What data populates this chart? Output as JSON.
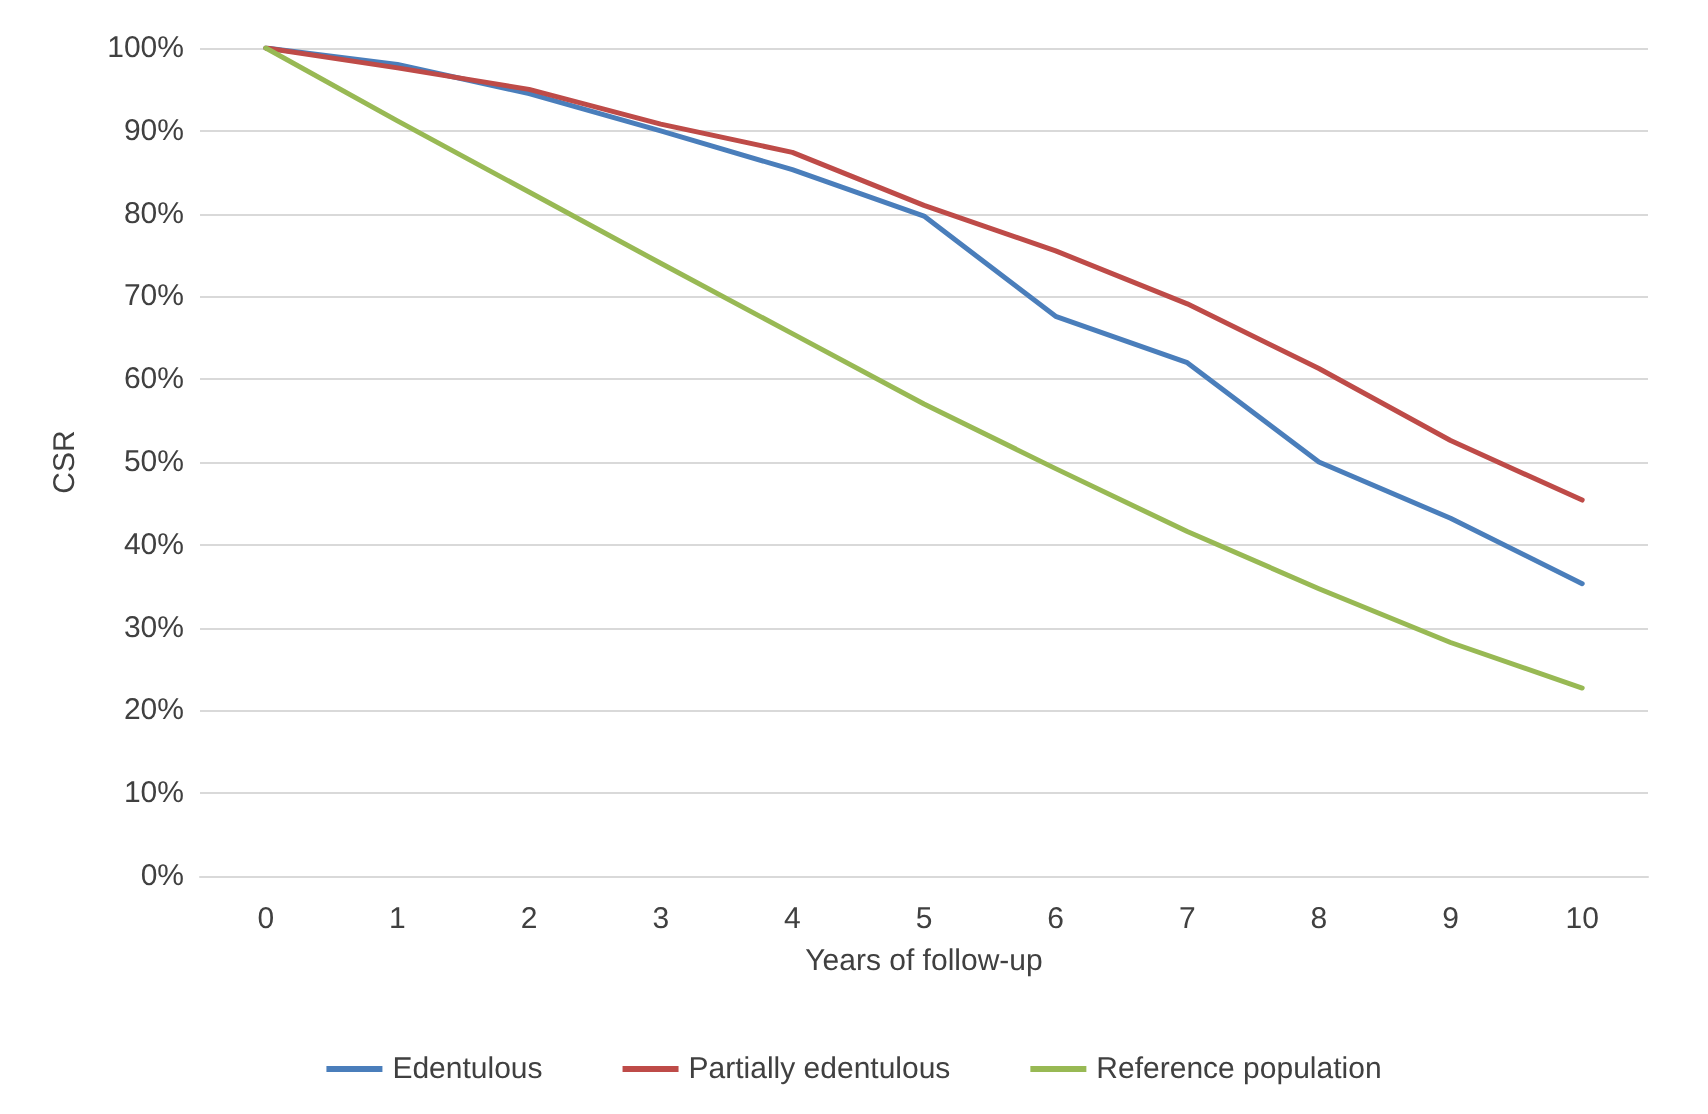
{
  "chart_data": {
    "type": "line",
    "xlabel": "Years of follow-up",
    "ylabel": "CSR",
    "categories": [
      "0",
      "1",
      "2",
      "3",
      "4",
      "5",
      "6",
      "7",
      "8",
      "9",
      "10"
    ],
    "series": [
      {
        "name": "Edentulous",
        "color": "#4a7ebb",
        "values": [
          100,
          98,
          94.5,
          90,
          85.3,
          79.7,
          67.6,
          62,
          50,
          43.2,
          35.3
        ]
      },
      {
        "name": "Partially edentulous",
        "color": "#be4b48",
        "values": [
          100,
          97.6,
          95,
          90.8,
          87.4,
          81,
          75.5,
          69.1,
          61.3,
          52.6,
          45.4
        ]
      },
      {
        "name": "Reference population",
        "color": "#98b954",
        "values": [
          100,
          91.2,
          82.6,
          74,
          65.5,
          57,
          49.2,
          41.6,
          34.7,
          28.2,
          22.7
        ]
      }
    ],
    "ylim": [
      0,
      100
    ],
    "yticks": [
      {
        "value": 0,
        "label": "0%"
      },
      {
        "value": 10,
        "label": "10%"
      },
      {
        "value": 20,
        "label": "20%"
      },
      {
        "value": 30,
        "label": "30%"
      },
      {
        "value": 40,
        "label": "40%"
      },
      {
        "value": 50,
        "label": "50%"
      },
      {
        "value": 60,
        "label": "60%"
      },
      {
        "value": 70,
        "label": "70%"
      },
      {
        "value": 80,
        "label": "80%"
      },
      {
        "value": 90,
        "label": "90%"
      },
      {
        "value": 100,
        "label": "100%"
      }
    ],
    "grid": "y",
    "legend": "bottom",
    "marker": "none",
    "line_style": "solid"
  }
}
